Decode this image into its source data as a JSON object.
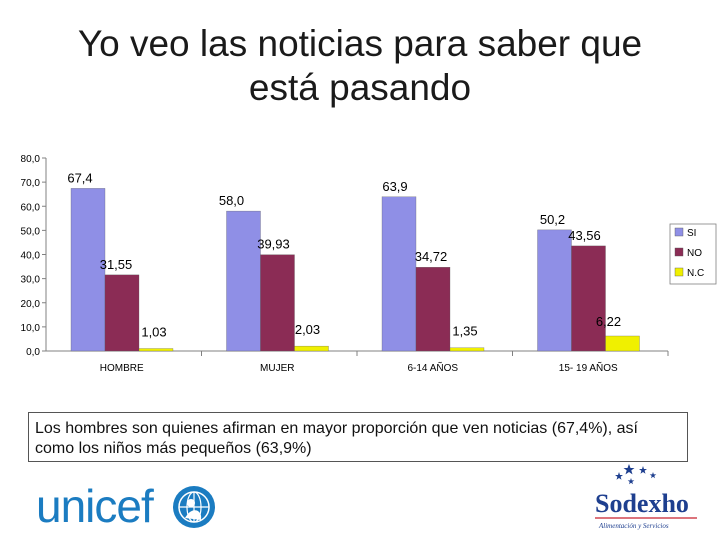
{
  "title": {
    "line1": "Yo veo las noticias para saber que",
    "line2": "está pasando"
  },
  "chart_data": {
    "type": "bar",
    "categories": [
      "HOMBRE",
      "MUJER",
      "6-14 AÑOS",
      "15- 19 AÑOS"
    ],
    "series": [
      {
        "name": "SI",
        "values": [
          67.4,
          58.0,
          63.9,
          50.2
        ],
        "labels": [
          "67,4",
          "58,0",
          "63,9",
          "50,2"
        ],
        "color": "#8f8fe6"
      },
      {
        "name": "NO",
        "values": [
          31.55,
          39.93,
          34.72,
          43.56
        ],
        "labels": [
          "31,55",
          "39,93",
          "34,72",
          "43,56"
        ],
        "color": "#8b2c55"
      },
      {
        "name": "N.C",
        "values": [
          1.03,
          2.03,
          1.35,
          6.22
        ],
        "labels": [
          "1,03",
          "2,03",
          "1,35",
          "6,22"
        ],
        "color": "#f0f000"
      }
    ],
    "yticks": [
      "0,0",
      "10,0",
      "20,0",
      "30,0",
      "40,0",
      "50,0",
      "60,0",
      "70,0",
      "80,0"
    ],
    "ylim": [
      0,
      80
    ],
    "legend_position": "right",
    "title": "",
    "xlabel": "",
    "ylabel": ""
  },
  "note": "Los hombres son quienes afirman en mayor proporción que ven noticias (67,4%), así como los niños más pequeños (63,9%)",
  "logos": {
    "unicef": "unicef",
    "sodexho": "Sodexho",
    "sodexho_tagline": "Alimentación y Servicios"
  },
  "colors": {
    "unicef_blue": "#1b7cc1",
    "sodexho_blue": "#1e3f8f",
    "sodexho_red": "#c8202f"
  }
}
